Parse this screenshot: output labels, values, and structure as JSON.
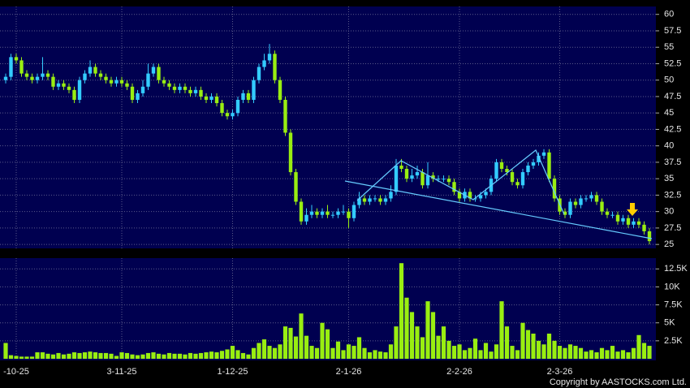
{
  "chart_data": {
    "type": "candlestick",
    "categories": [
      null,
      null,
      "-10-25",
      null,
      null,
      null,
      null,
      null,
      null,
      null,
      null,
      null,
      null,
      null,
      null,
      null,
      null,
      null,
      null,
      null,
      null,
      null,
      "3-11-25",
      null,
      null,
      null,
      null,
      null,
      null,
      null,
      null,
      null,
      null,
      null,
      null,
      null,
      null,
      null,
      null,
      null,
      null,
      null,
      null,
      "1-12-25",
      null,
      null,
      null,
      null,
      null,
      null,
      null,
      null,
      null,
      null,
      null,
      null,
      null,
      null,
      null,
      null,
      null,
      null,
      null,
      null,
      null,
      "2-1-26",
      null,
      null,
      null,
      null,
      null,
      null,
      null,
      null,
      null,
      null,
      null,
      null,
      null,
      null,
      null,
      null,
      null,
      null,
      null,
      null,
      "2-2-26",
      null,
      null,
      null,
      null,
      null,
      null,
      null,
      null,
      null,
      null,
      null,
      null,
      null,
      null,
      null,
      null,
      null,
      null,
      "2-3-26",
      null,
      null,
      null,
      null,
      null,
      null,
      null,
      null,
      null,
      null,
      null,
      null,
      null,
      null,
      null,
      null,
      null
    ],
    "open": [
      50,
      50.5,
      53.5,
      53,
      51,
      50.5,
      50,
      50.5,
      51,
      50.5,
      49,
      49.5,
      49,
      48.5,
      47,
      50,
      51,
      52,
      51,
      50.5,
      50,
      49.5,
      50,
      49.5,
      49,
      47,
      48,
      49,
      51,
      52,
      50,
      49.5,
      49,
      48.5,
      49,
      48.5,
      48,
      48.5,
      47.5,
      47,
      47.5,
      46.5,
      45,
      44.5,
      45,
      47,
      48,
      47,
      50,
      52,
      53,
      54,
      50,
      47,
      42,
      36,
      31.5,
      28.5,
      29.5,
      30,
      29.5,
      30,
      29.5,
      29.5,
      30,
      30,
      29,
      31,
      32,
      31.5,
      32,
      32,
      31.5,
      32,
      33,
      37,
      36.5,
      35,
      35.5,
      36,
      34,
      35.5,
      35,
      35,
      35,
      34.5,
      33,
      32,
      33,
      32,
      32,
      32.5,
      33,
      35,
      37.5,
      36.5,
      36,
      34.5,
      34,
      36,
      37,
      37.5,
      38.5,
      39,
      35,
      32,
      30,
      29.5,
      31.5,
      31,
      32,
      32,
      32.5,
      31.5,
      30,
      29.5,
      29.5,
      28.5,
      29,
      28,
      28.5,
      28,
      27
    ],
    "high": [
      51,
      54,
      54,
      53.5,
      51.5,
      51,
      51,
      53.5,
      51.5,
      51,
      50,
      50,
      49.5,
      49,
      50.5,
      51.5,
      53,
      52.5,
      51.5,
      51,
      50.5,
      50.5,
      50.5,
      50,
      49.5,
      48.5,
      50,
      52.5,
      52.5,
      52.5,
      50.5,
      50,
      49.5,
      49.5,
      49.5,
      49,
      49,
      49,
      48,
      48,
      48,
      47,
      45.5,
      45.5,
      47.5,
      48.5,
      48.5,
      50.5,
      52.5,
      54,
      55.5,
      54.5,
      50.5,
      47.5,
      42.5,
      36.5,
      32,
      30.5,
      31,
      30.5,
      30.5,
      31,
      30,
      30.5,
      31,
      30.5,
      31.5,
      33,
      32.5,
      32.5,
      32.5,
      32.5,
      32.5,
      34,
      38,
      38,
      37,
      36.5,
      37,
      36.5,
      37.5,
      36,
      35.5,
      35.5,
      35.5,
      35,
      33.5,
      33.5,
      33.5,
      32.5,
      33,
      33.5,
      35.5,
      38,
      38,
      37,
      36.5,
      35,
      36.5,
      37.5,
      38,
      39,
      39.5,
      39.5,
      35.5,
      32.5,
      30.5,
      32,
      32,
      32.5,
      32.5,
      33,
      33,
      32,
      30.5,
      30,
      30,
      29.5,
      29.5,
      29,
      29,
      28.5,
      27.5
    ],
    "low": [
      49.5,
      50,
      52.5,
      50.5,
      50,
      49.5,
      49.5,
      50,
      50,
      48.5,
      48.5,
      48.5,
      48,
      46.5,
      46.5,
      49.5,
      50.5,
      50.5,
      50,
      49.5,
      49,
      49,
      49,
      48.5,
      46.5,
      46.5,
      47.5,
      48.5,
      50.5,
      49.5,
      49,
      48.5,
      48,
      48,
      48,
      47.5,
      47.5,
      47,
      46.5,
      46.5,
      46,
      44.5,
      44,
      44,
      44.5,
      46.5,
      46.5,
      46.5,
      49.5,
      51.5,
      52.5,
      49.5,
      46.5,
      41.5,
      35.5,
      31,
      28,
      28,
      29,
      29,
      29,
      29,
      29,
      29,
      29.5,
      27.5,
      28.5,
      30.5,
      31,
      31,
      31.5,
      31,
      31,
      31.5,
      32.5,
      36,
      34.5,
      34.5,
      35,
      33.5,
      33.5,
      34.5,
      34.5,
      34.5,
      34,
      32.5,
      31.5,
      31.5,
      31.5,
      31.5,
      31.5,
      32,
      32.5,
      34.5,
      36,
      35.5,
      34,
      33.5,
      33.5,
      35.5,
      36.5,
      37,
      38,
      34.5,
      31.5,
      29.5,
      29,
      29,
      30.5,
      30.5,
      31.5,
      31.5,
      31,
      29.5,
      29,
      29,
      28,
      28,
      27.5,
      27.5,
      27.5,
      26.5,
      25
    ],
    "close": [
      50.5,
      53.5,
      53,
      51,
      50.5,
      50,
      50.5,
      51,
      50.5,
      49,
      49.5,
      49,
      48.5,
      47,
      50,
      51,
      52,
      51,
      50.5,
      50,
      49.5,
      50,
      49.5,
      49,
      47,
      48,
      49,
      51,
      52,
      50,
      49.5,
      49,
      48.5,
      49,
      48.5,
      48,
      48.5,
      47.5,
      47,
      47.5,
      46.5,
      45,
      44.5,
      45,
      47,
      48,
      47,
      50,
      52,
      53,
      54,
      50,
      47,
      42,
      36,
      31.5,
      28.5,
      29.5,
      30,
      29.5,
      30,
      29.5,
      29.5,
      30,
      30,
      29,
      31,
      32,
      31.5,
      32,
      32,
      31.5,
      32,
      33,
      37,
      36.5,
      35,
      35.5,
      36,
      34,
      35.5,
      35,
      35,
      35,
      34.5,
      33,
      32,
      33,
      32,
      32,
      32.5,
      33,
      35,
      37.5,
      36.5,
      36,
      34.5,
      34,
      36,
      37,
      37.5,
      38.5,
      39,
      35,
      32,
      30,
      29.5,
      31.5,
      31,
      32,
      32,
      32.5,
      31.5,
      30,
      29.5,
      29.5,
      28.5,
      29,
      28,
      28.5,
      28,
      27,
      25.5
    ],
    "volume": [
      2200,
      500,
      400,
      300,
      300,
      300,
      900,
      900,
      700,
      600,
      800,
      600,
      700,
      900,
      800,
      900,
      1000,
      900,
      800,
      800,
      700,
      400,
      900,
      800,
      600,
      500,
      600,
      800,
      900,
      700,
      600,
      800,
      700,
      700,
      600,
      800,
      700,
      800,
      900,
      1000,
      900,
      1100,
      1300,
      1800,
      1200,
      800,
      600,
      1500,
      2200,
      2700,
      1800,
      1500,
      2000,
      4500,
      4300,
      3100,
      6300,
      3200,
      1800,
      1500,
      5000,
      4100,
      1500,
      2400,
      1200,
      2000,
      1800,
      3000,
      1500,
      900,
      1200,
      1000,
      900,
      2000,
      4500,
      13300,
      8500,
      6500,
      4500,
      3000,
      8000,
      6500,
      3200,
      4500,
      2500,
      1800,
      2000,
      1200,
      1500,
      2800,
      1200,
      2200,
      1000,
      2000,
      8000,
      4500,
      1800,
      1200,
      5000,
      4000,
      3500,
      2500,
      2000,
      3500,
      2500,
      1800,
      1500,
      2000,
      1800,
      1500,
      1000,
      1200,
      900,
      1500,
      1200,
      1800,
      1000,
      1200,
      900,
      1500,
      3300,
      2200,
      1800
    ],
    "ylim": [
      24.4,
      61.2
    ],
    "yticks": [
      25,
      27.5,
      30,
      32.5,
      35,
      37.5,
      40,
      42.5,
      45,
      47.5,
      50,
      52.5,
      55,
      57.5,
      60
    ],
    "volume_ylim": [
      0,
      14000
    ],
    "volume_yticks": [
      {
        "value": 2500,
        "label": "2.5K"
      },
      {
        "value": 5000,
        "label": "5K"
      },
      {
        "value": 7500,
        "label": "7.5K"
      },
      {
        "value": 10000,
        "label": "10K"
      },
      {
        "value": 12500,
        "label": "12.5K"
      }
    ],
    "up_color": "#33ccff",
    "down_color": "#99ee11",
    "volume_color": "#99ee11",
    "grid": true
  },
  "copyright": "Copyright by AASTOCKS.com Ltd."
}
